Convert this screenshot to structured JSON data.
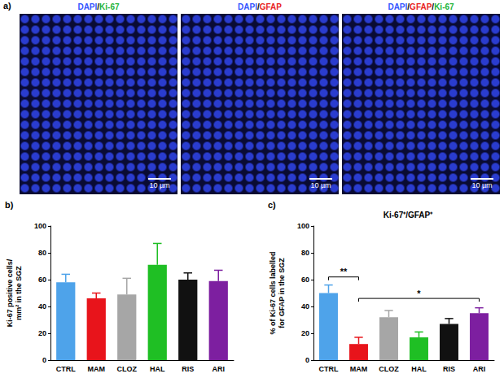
{
  "panel_a": {
    "panel_label": "a)",
    "channel_colors": {
      "DAPI": "#3355ff",
      "Ki-67": "#22b43a",
      "GFAP": "#e81f1f"
    },
    "images": [
      {
        "title": "DAPI/Ki-67",
        "scale_bar": "10 µm"
      },
      {
        "title": "DAPI/GFAP",
        "scale_bar": "10 µm"
      },
      {
        "title": "DAPI/GFAP/Ki-67",
        "scale_bar": "10 µm"
      }
    ]
  },
  "chart_data": [
    {
      "type": "bar",
      "panel_label": "b)",
      "y_label": "Ki-67 positive cells/ mm² in the SGZ",
      "categories": [
        "CTRL",
        "MAM",
        "CLOZ",
        "HAL",
        "RIS",
        "ARI"
      ],
      "values": [
        58,
        46,
        49,
        71,
        60,
        59
      ],
      "errors": [
        6,
        4,
        12,
        16,
        5,
        8
      ],
      "colors": [
        "#4ea3ea",
        "#e8141b",
        "#a6a6a6",
        "#1fbf24",
        "#111111",
        "#7d1fa0"
      ],
      "ylim": [
        0,
        100
      ],
      "yticks": [
        0,
        20,
        40,
        60,
        80,
        100
      ],
      "grid": false
    },
    {
      "type": "bar",
      "panel_label": "c)",
      "title": "Ki-67⁺/GFAP⁺",
      "y_label": "% of Ki-67 cells labelled for GFAP in the SGZ",
      "categories": [
        "CTRL",
        "MAM",
        "CLOZ",
        "HAL",
        "RIS",
        "ARI"
      ],
      "values": [
        50,
        12,
        32,
        17,
        27,
        35
      ],
      "errors": [
        6,
        5,
        5,
        4,
        4,
        4
      ],
      "colors": [
        "#4ea3ea",
        "#e8141b",
        "#a6a6a6",
        "#1fbf24",
        "#111111",
        "#7d1fa0"
      ],
      "annotations": [
        {
          "from": "CTRL",
          "to": "MAM",
          "y": 62,
          "text": "**"
        },
        {
          "from": "MAM",
          "to": "ARI",
          "y": 46,
          "text": "*"
        }
      ],
      "ylim": [
        0,
        100
      ],
      "yticks": [
        0,
        20,
        40,
        60,
        80,
        100
      ],
      "grid": false
    }
  ]
}
